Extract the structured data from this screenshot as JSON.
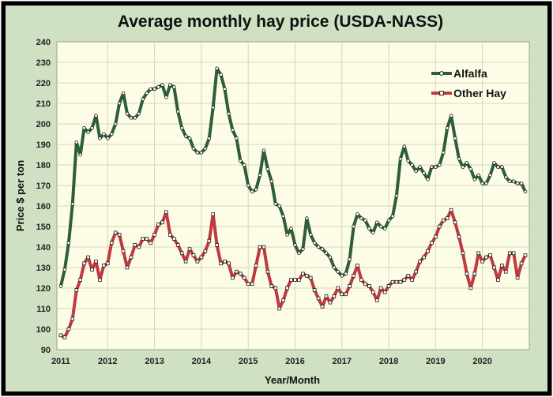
{
  "chart_data": {
    "type": "line",
    "title": "Average monthly hay price (USDA-NASS)",
    "xlabel": "Year/Month",
    "ylabel": "Price $ per ton",
    "ylim": [
      90,
      240
    ],
    "yticks": [
      90,
      100,
      110,
      120,
      130,
      140,
      150,
      160,
      170,
      180,
      190,
      200,
      210,
      220,
      230,
      240
    ],
    "xticks": [
      "2011",
      "2012",
      "2013",
      "2014",
      "2015",
      "2016",
      "2017",
      "2018",
      "2019",
      "2020"
    ],
    "x_start": "2011-01",
    "x_range_months": [
      0,
      119
    ],
    "grid": true,
    "legend_position": "top-right",
    "colors": {
      "Alfalfa": "#2d5e3a",
      "Other Hay": "#c0393e",
      "plot_bg": "#fdfde7",
      "frame_bg": "#cfe0c3",
      "grid": "#d6d6b5"
    },
    "series": [
      {
        "name": "Alfalfa",
        "values": [
          121,
          129,
          142,
          161,
          191,
          185,
          198,
          196,
          198,
          204,
          193,
          195,
          193,
          195,
          200,
          210,
          215,
          205,
          203,
          203,
          205,
          212,
          215,
          217,
          217,
          218,
          219,
          213,
          219,
          218,
          206,
          198,
          194,
          193,
          188,
          186,
          186,
          188,
          193,
          208,
          227,
          224,
          217,
          205,
          197,
          193,
          182,
          180,
          170,
          167,
          168,
          175,
          187,
          178,
          172,
          161,
          160,
          155,
          146,
          149,
          141,
          137,
          139,
          154,
          146,
          142,
          140,
          139,
          137,
          135,
          130,
          128,
          126,
          127,
          134,
          150,
          156,
          154,
          153,
          149,
          147,
          152,
          150,
          149,
          153,
          155,
          165,
          183,
          189,
          182,
          180,
          177,
          179,
          176,
          173,
          179,
          179,
          180,
          186,
          198,
          204,
          193,
          183,
          179,
          181,
          178,
          173,
          175,
          171,
          171,
          175,
          181,
          179,
          179,
          174,
          172,
          172,
          171,
          171,
          167
        ]
      },
      {
        "name": "Other Hay",
        "values": [
          97,
          96,
          100,
          105,
          119,
          124,
          132,
          135,
          129,
          133,
          124,
          131,
          132,
          142,
          147,
          146,
          138,
          130,
          135,
          141,
          140,
          144,
          144,
          142,
          146,
          151,
          152,
          157,
          146,
          144,
          141,
          137,
          133,
          139,
          136,
          133,
          135,
          138,
          143,
          156,
          141,
          132,
          133,
          132,
          125,
          128,
          127,
          125,
          122,
          122,
          131,
          140,
          140,
          128,
          121,
          120,
          110,
          114,
          120,
          124,
          124,
          124,
          127,
          126,
          125,
          119,
          115,
          111,
          116,
          113,
          116,
          120,
          117,
          117,
          121,
          126,
          131,
          124,
          122,
          121,
          118,
          114,
          120,
          118,
          121,
          123,
          123,
          123,
          124,
          126,
          124,
          128,
          133,
          135,
          138,
          142,
          145,
          150,
          153,
          154,
          158,
          152,
          145,
          137,
          127,
          120,
          127,
          137,
          133,
          135,
          136,
          130,
          124,
          131,
          128,
          137,
          137,
          125,
          132,
          136
        ]
      }
    ]
  }
}
